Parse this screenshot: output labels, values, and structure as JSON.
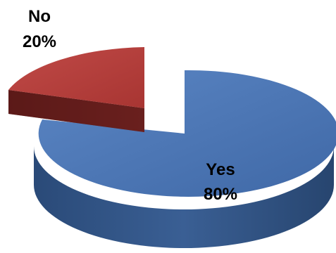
{
  "chart_data": {
    "type": "pie",
    "style": "3d-exploded",
    "title": "",
    "slices": [
      {
        "label": "Yes",
        "value": 80,
        "value_label": "80%",
        "color": "#4A76B6",
        "side_color": "#2F5486"
      },
      {
        "label": "No",
        "value": 20,
        "value_label": "20%",
        "color": "#B8403E",
        "side_color": "#7A2624"
      }
    ],
    "legend": "none"
  }
}
